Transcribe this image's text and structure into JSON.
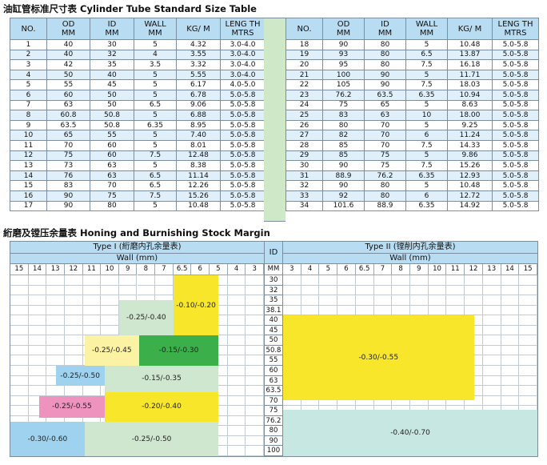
{
  "std_table": {
    "title": "油缸管标准尺寸表 Cylinder Tube Standard Size Table",
    "headers": {
      "no": "NO.",
      "od": [
        "OD",
        "MM"
      ],
      "id": [
        "ID",
        "MM"
      ],
      "wall": [
        "WALL",
        "MM"
      ],
      "kg": [
        "KG/ M",
        ""
      ],
      "length": [
        "LENG TH",
        "MTRS"
      ]
    },
    "left_rows": [
      [
        "1",
        "40",
        "30",
        "5",
        "4.32",
        "3.0-4.0"
      ],
      [
        "2",
        "40",
        "32",
        "4",
        "3.55",
        "3.0-4.0"
      ],
      [
        "3",
        "42",
        "35",
        "3.5",
        "3.32",
        "3.0-4.0"
      ],
      [
        "4",
        "50",
        "40",
        "5",
        "5.55",
        "3.0-4.0"
      ],
      [
        "5",
        "55",
        "45",
        "5",
        "6.17",
        "4.0-5.0"
      ],
      [
        "6",
        "60",
        "50",
        "5",
        "6.78",
        "5.0-5.8"
      ],
      [
        "7",
        "63",
        "50",
        "6.5",
        "9.06",
        "5.0-5.8"
      ],
      [
        "8",
        "60.8",
        "50.8",
        "5",
        "6.88",
        "5.0-5.8"
      ],
      [
        "9",
        "63.5",
        "50.8",
        "6.35",
        "8.95",
        "5.0-5.8"
      ],
      [
        "10",
        "65",
        "55",
        "5",
        "7.40",
        "5.0-5.8"
      ],
      [
        "11",
        "70",
        "60",
        "5",
        "8.01",
        "5.0-5.8"
      ],
      [
        "12",
        "75",
        "60",
        "7.5",
        "12.48",
        "5.0-5.8"
      ],
      [
        "13",
        "73",
        "63",
        "5",
        "8.38",
        "5.0-5.8"
      ],
      [
        "14",
        "76",
        "63",
        "6.5",
        "11.14",
        "5.0-5.8"
      ],
      [
        "15",
        "83",
        "70",
        "6.5",
        "12.26",
        "5.0-5.8"
      ],
      [
        "16",
        "90",
        "75",
        "7.5",
        "15.26",
        "5.0-5.8"
      ],
      [
        "17",
        "90",
        "80",
        "5",
        "10.48",
        "5.0-5.8"
      ]
    ],
    "right_rows": [
      [
        "18",
        "90",
        "80",
        "5",
        "10.48",
        "5.0-5.8"
      ],
      [
        "19",
        "93",
        "80",
        "6.5",
        "13.87",
        "5.0-5.8"
      ],
      [
        "20",
        "95",
        "80",
        "7.5",
        "16.18",
        "5.0-5.8"
      ],
      [
        "21",
        "100",
        "90",
        "5",
        "11.71",
        "5.0-5.8"
      ],
      [
        "22",
        "105",
        "90",
        "7.5",
        "18.03",
        "5.0-5.8"
      ],
      [
        "23",
        "76.2",
        "63.5",
        "6.35",
        "10.94",
        "5.0-5.8"
      ],
      [
        "24",
        "75",
        "65",
        "5",
        "8.63",
        "5.0-5.8"
      ],
      [
        "25",
        "83",
        "63",
        "10",
        "18.00",
        "5.0-5.8"
      ],
      [
        "26",
        "80",
        "70",
        "5",
        "9.25",
        "5.0-5.8"
      ],
      [
        "27",
        "82",
        "70",
        "6",
        "11.24",
        "5.0-5.8"
      ],
      [
        "28",
        "85",
        "70",
        "7.5",
        "14.33",
        "5.0-5.8"
      ],
      [
        "29",
        "85",
        "75",
        "5",
        "9.86",
        "5.0-5.8"
      ],
      [
        "30",
        "90",
        "75",
        "7.5",
        "15.26",
        "5.0-5.8"
      ],
      [
        "31",
        "88.9",
        "76.2",
        "6.35",
        "12.93",
        "5.0-5.8"
      ],
      [
        "32",
        "90",
        "80",
        "5",
        "10.48",
        "5.0-5.8"
      ],
      [
        "33",
        "92",
        "80",
        "6",
        "12.72",
        "5.0-5.8"
      ],
      [
        "34",
        "101.6",
        "88.9",
        "6.35",
        "14.92",
        "5.0-5.8"
      ]
    ]
  },
  "honing": {
    "title": "絎磨及镗压余量表 Honing and Burnishing Stock Margin",
    "type1_label": "Type I (絎磨内孔余量表)",
    "type2_label": "Type II (镗削内孔余量表)",
    "id_label": "ID",
    "wall_label": "Wall  (mm)",
    "mm_label": "MM",
    "left_wall_values": [
      "15",
      "14",
      "13",
      "12",
      "11",
      "10",
      "9",
      "8",
      "7",
      "6.5",
      "6",
      "5",
      "4",
      "3"
    ],
    "right_wall_values": [
      "3",
      "4",
      "5",
      "6",
      "6.5",
      "7",
      "8",
      "9",
      "10",
      "11",
      "12",
      "13",
      "14",
      "15"
    ],
    "id_values": [
      "30",
      "32",
      "35",
      "38.1",
      "40",
      "45",
      "50",
      "50.8",
      "55",
      "60",
      "63",
      "63.5",
      "70",
      "75",
      "76.2",
      "80",
      "90",
      "100"
    ],
    "zones_left": [
      {
        "label": "-0.25/-0.40",
        "color": "#cfe7cf"
      },
      {
        "label": "-0.10/-0.20",
        "color": "#f7e62a"
      },
      {
        "label": "-0.25/-0.45",
        "color": "#fbf3a3"
      },
      {
        "label": "-0.15/-0.30",
        "color": "#3aaf4a"
      },
      {
        "label": "-0.25/-0.50",
        "color": "#9fd2ef"
      },
      {
        "label": "-0.15/-0.35",
        "color": "#cfe7cf"
      },
      {
        "label": "-0.25/-0.55",
        "color": "#ee93bd"
      },
      {
        "label": "-0.20/-0.40",
        "color": "#f7e62a"
      },
      {
        "label": "-0.30/-0.60",
        "color": "#9fd2ef"
      },
      {
        "label": "-0.25/-0.50",
        "color": "#cfe7cf"
      }
    ],
    "zones_right": [
      {
        "label": "-0.30/-0.55",
        "color": "#f7e62a"
      },
      {
        "label": "-0.40/-0.70",
        "color": "#c7e7e2"
      }
    ]
  }
}
